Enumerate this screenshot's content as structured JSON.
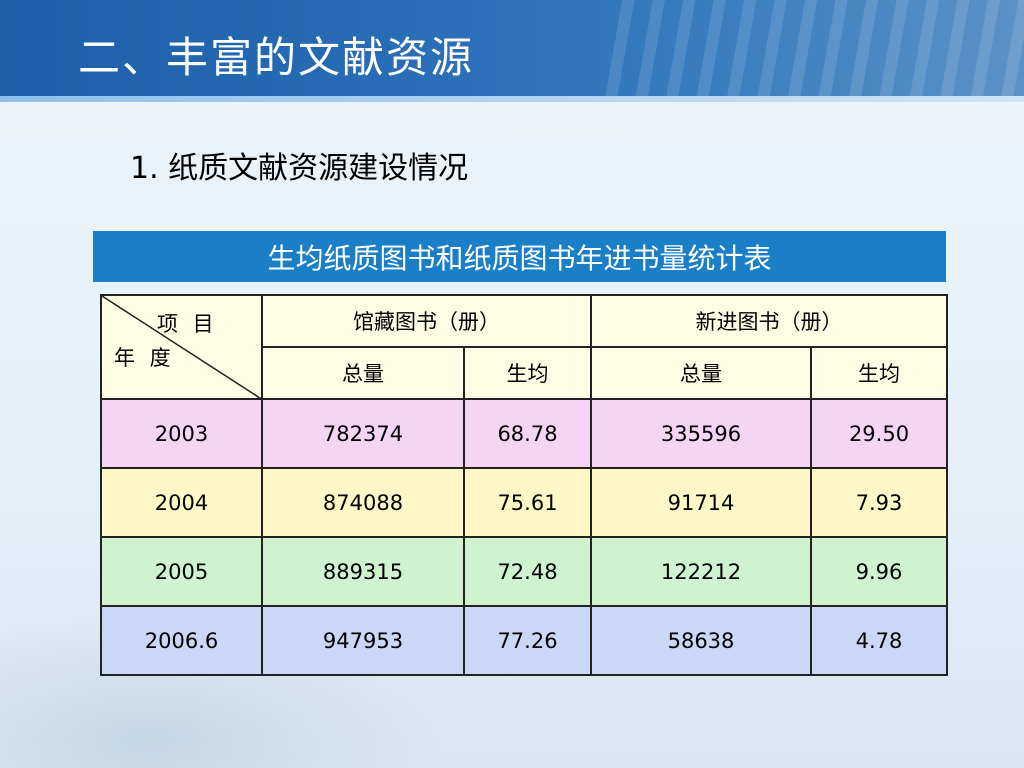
{
  "slide": {
    "title": "二、丰富的文献资源",
    "section_heading": "1. 纸质文献资源建设情况"
  },
  "table": {
    "caption": "生均纸质图书和纸质图书年进书量统计表",
    "corner_top": "项 目",
    "corner_bottom": "年 度",
    "group_headers": [
      "馆藏图书（册）",
      "新进图书（册）"
    ],
    "sub_headers": [
      "总量",
      "生均",
      "总量",
      "生均"
    ],
    "rows": [
      {
        "year": "2003",
        "holdings_total": "782374",
        "holdings_per_student": "68.78",
        "new_total": "335596",
        "new_per_student": "29.50"
      },
      {
        "year": "2004",
        "holdings_total": "874088",
        "holdings_per_student": "75.61",
        "new_total": "91714",
        "new_per_student": "7.93"
      },
      {
        "year": "2005",
        "holdings_total": "889315",
        "holdings_per_student": "72.48",
        "new_total": "122212",
        "new_per_student": "9.96"
      },
      {
        "year": "2006.6",
        "holdings_total": "947953",
        "holdings_per_student": "77.26",
        "new_total": "58638",
        "new_per_student": "4.78"
      }
    ]
  },
  "colors": {
    "header_blue": "#1d5fa8",
    "caption_blue": "#1b7fc8",
    "row_2003": "#f6d4f3",
    "row_2004": "#fff7c5",
    "row_2005": "#cff3cf",
    "row_2006": "#c9d8f7",
    "header_cells": "#fffde4"
  }
}
